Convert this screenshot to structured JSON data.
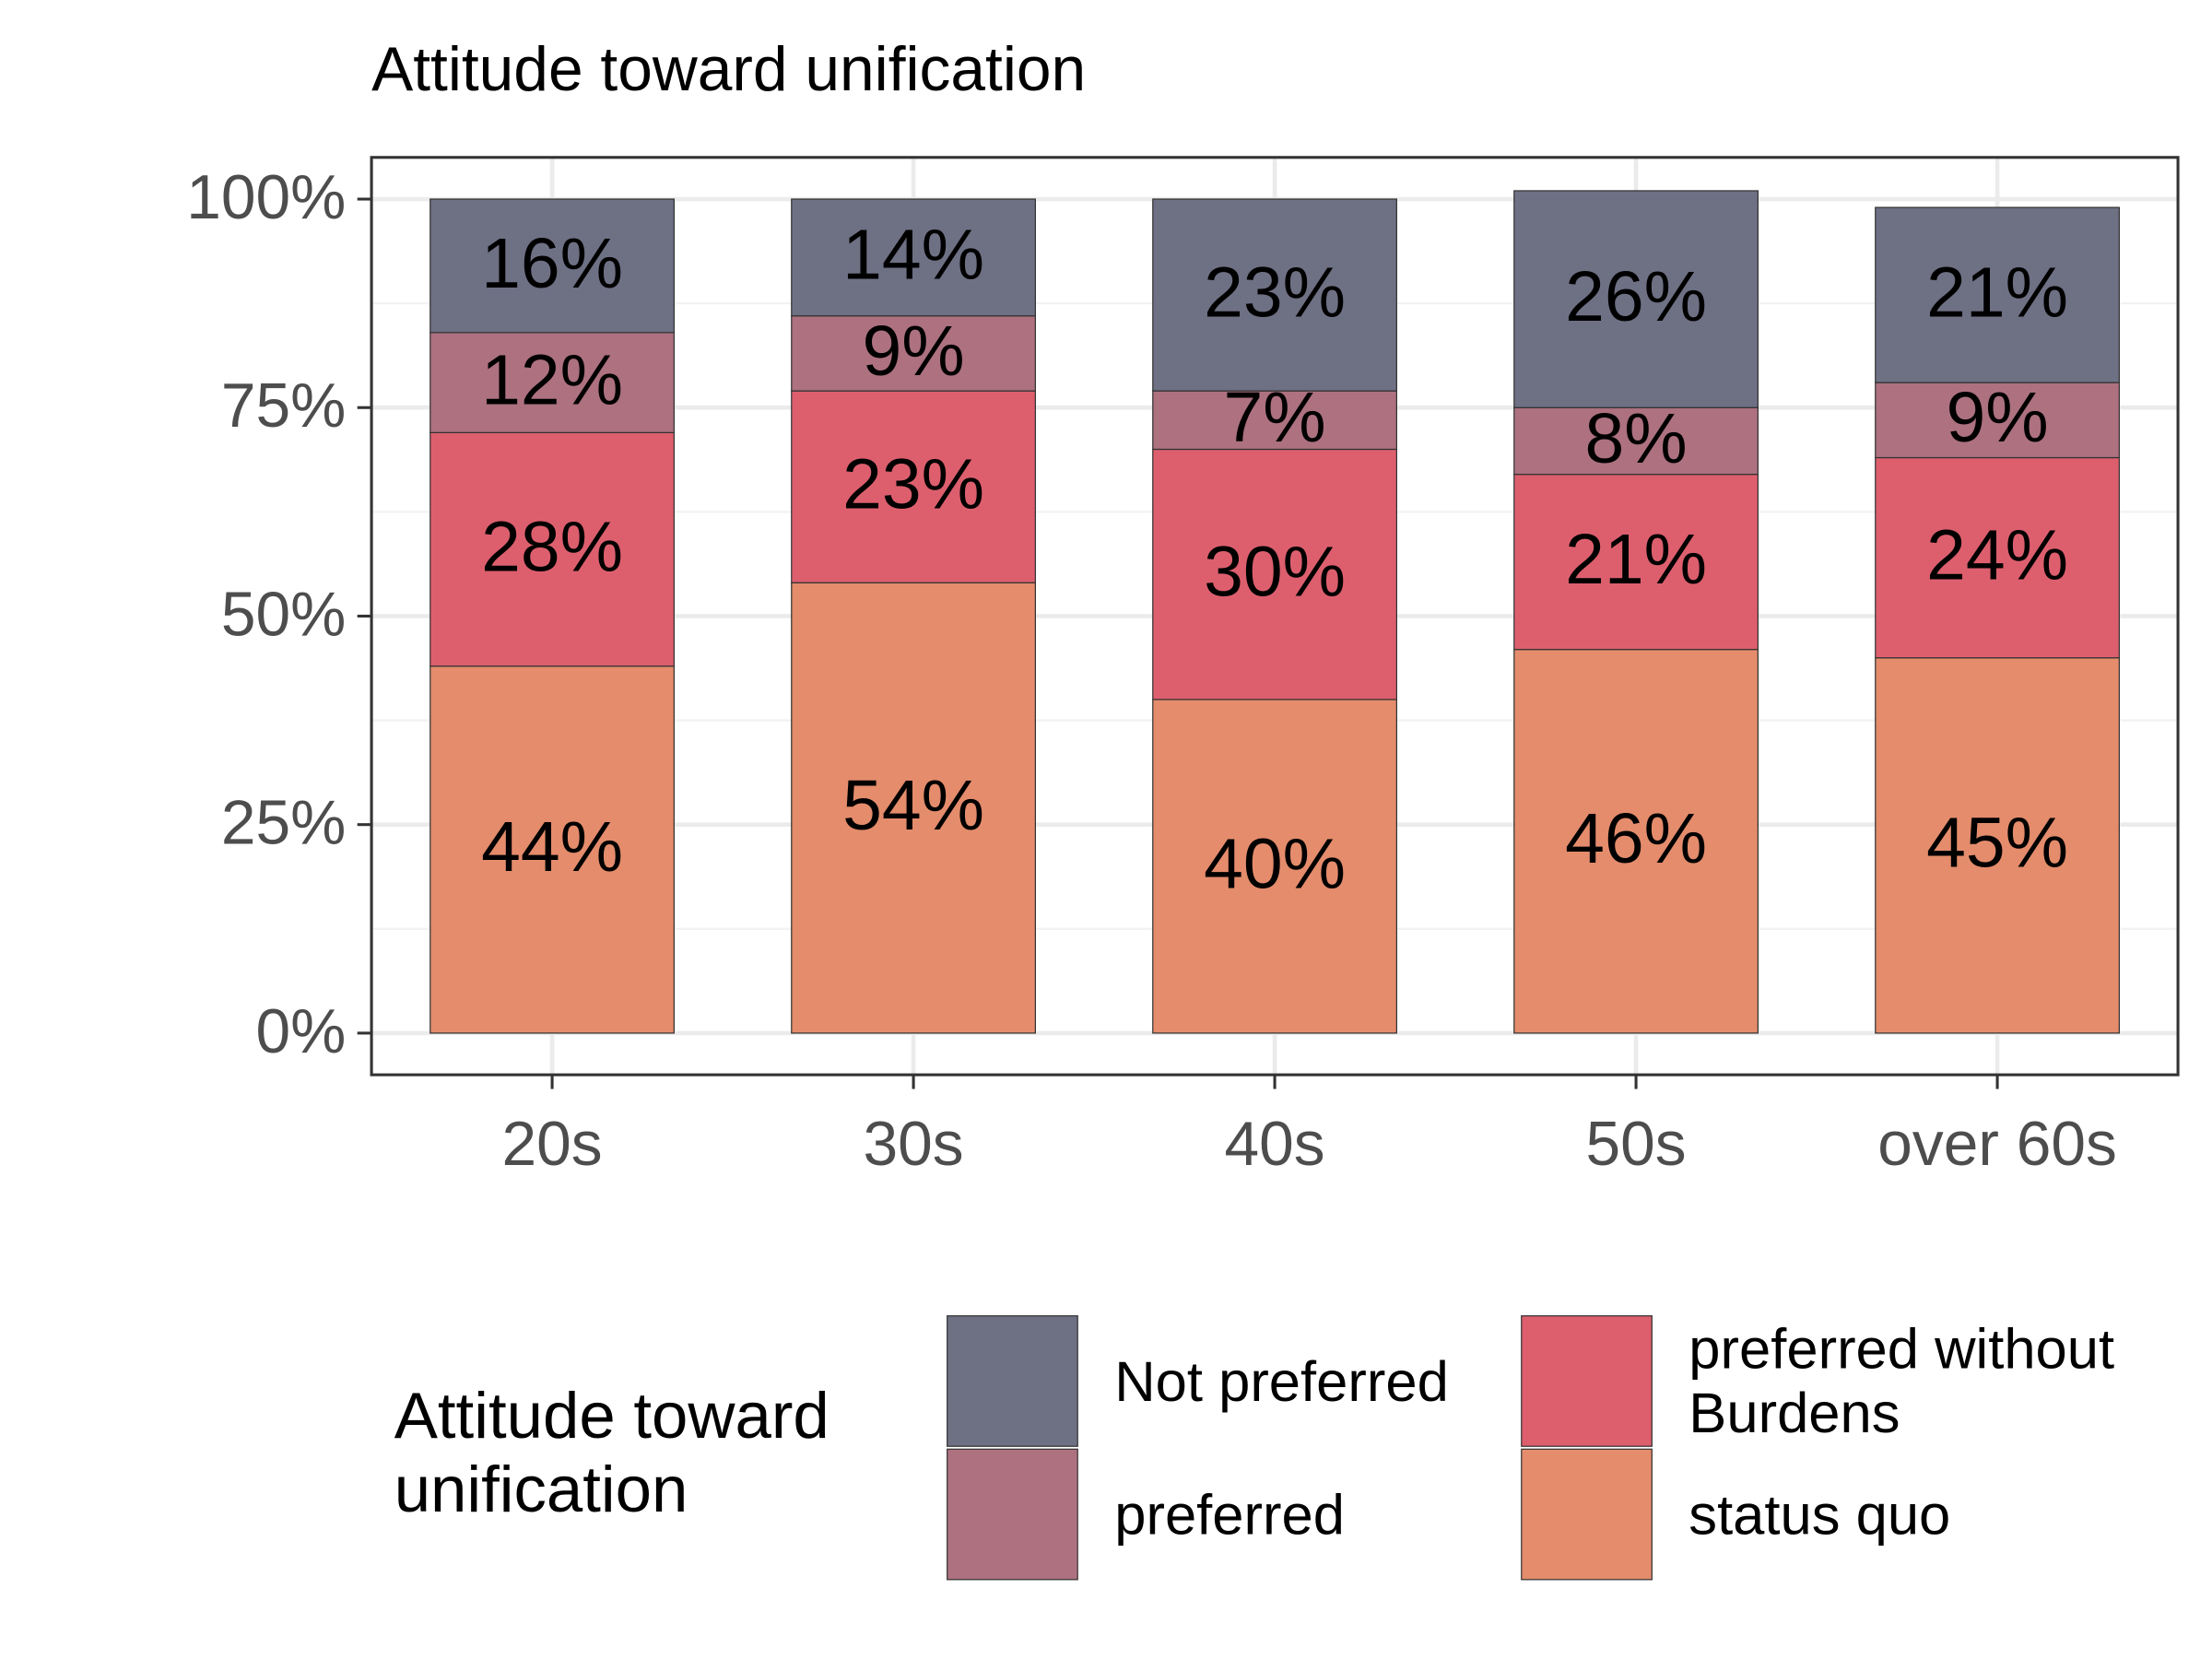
{
  "chart_data": {
    "type": "stacked_bar",
    "title": "Attitude toward unification",
    "categories": [
      "20s",
      "30s",
      "40s",
      "50s",
      "over 60s"
    ],
    "series": [
      {
        "name": "status quo",
        "color": "#e48c6c",
        "values": [
          44,
          54,
          40,
          46,
          45
        ],
        "value_labels": [
          "44%",
          "54%",
          "40%",
          "46%",
          "45%"
        ]
      },
      {
        "name": "preferred without Burdens",
        "color": "#dd5f6e",
        "values": [
          28,
          23,
          30,
          21,
          24
        ],
        "value_labels": [
          "28%",
          "23%",
          "30%",
          "21%",
          "24%"
        ]
      },
      {
        "name": "preferred",
        "color": "#ad7180",
        "values": [
          12,
          9,
          7,
          8,
          9
        ],
        "value_labels": [
          "12%",
          "9%",
          "7%",
          "8%",
          "9%"
        ]
      },
      {
        "name": "Not preferred",
        "color": "#6e7084",
        "values": [
          16,
          14,
          23,
          26,
          21
        ],
        "value_labels": [
          "16%",
          "14%",
          "23%",
          "26%",
          "21%"
        ]
      }
    ],
    "ylim": [
      -5,
      105
    ],
    "yticks": [
      {
        "value": 0,
        "label": "0%"
      },
      {
        "value": 25,
        "label": "25%"
      },
      {
        "value": 50,
        "label": "50%"
      },
      {
        "value": 75,
        "label": "75%"
      },
      {
        "value": 100,
        "label": "100%"
      }
    ],
    "grid": true,
    "legend": {
      "title": "Attitude toward unification",
      "position": "bottom"
    }
  }
}
